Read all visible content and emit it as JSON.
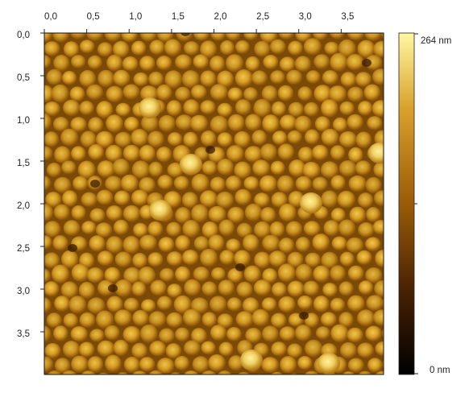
{
  "image": {
    "scan_width": 4.0,
    "scan_height": 4.0,
    "x_ticks": [
      {
        "value": 0.0,
        "label": "0,0"
      },
      {
        "value": 0.5,
        "label": "0,5"
      },
      {
        "value": 1.0,
        "label": "1,0"
      },
      {
        "value": 1.5,
        "label": "1,5"
      },
      {
        "value": 2.0,
        "label": "2,0"
      },
      {
        "value": 2.5,
        "label": "2,5"
      },
      {
        "value": 3.0,
        "label": "3,0"
      },
      {
        "value": 3.5,
        "label": "3,5"
      }
    ],
    "y_ticks": [
      {
        "value": 0.0,
        "label": "0,0"
      },
      {
        "value": 0.5,
        "label": "0,5"
      },
      {
        "value": 1.0,
        "label": "1,0"
      },
      {
        "value": 1.5,
        "label": "1,5"
      },
      {
        "value": 2.0,
        "label": "2,0"
      },
      {
        "value": 2.5,
        "label": "2,5"
      },
      {
        "value": 3.0,
        "label": "3,0"
      },
      {
        "value": 3.5,
        "label": "3,5"
      }
    ]
  },
  "colorbar": {
    "max_label": "264 nm",
    "min_label": "0 nm",
    "colors": {
      "low": "#000000",
      "mid_low": "#4a2204",
      "mid": "#9a5c07",
      "mid_high": "#d9a12c",
      "high": "#fff8a2"
    }
  }
}
